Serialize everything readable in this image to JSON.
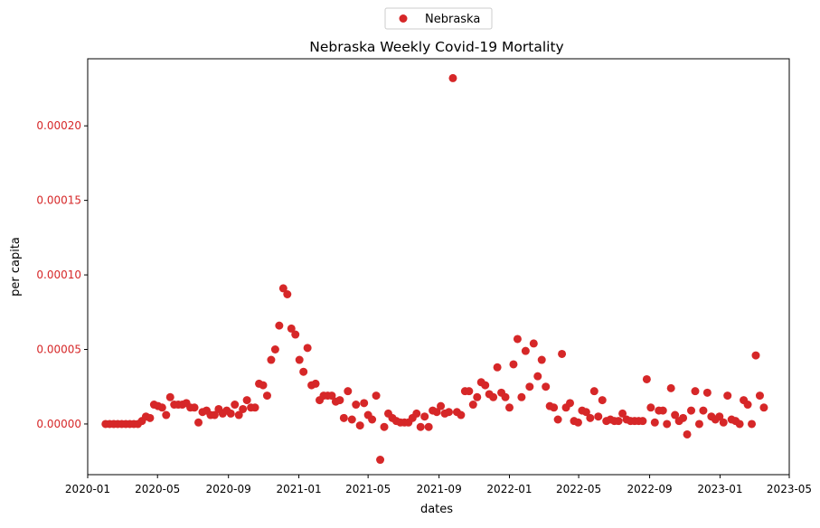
{
  "chart_data": {
    "type": "scatter",
    "title": "Nebraska Weekly Covid-19 Mortality",
    "xlabel": "dates",
    "ylabel": "per capita",
    "legend": {
      "position": "top-center",
      "entries": [
        "Nebraska"
      ]
    },
    "grid": false,
    "marker_color": "#d62728",
    "ytick_color": "#d62728",
    "xlim": [
      "2020-01-01",
      "2023-05-01"
    ],
    "ylim": [
      -3.4e-05,
      0.000245
    ],
    "xticks": [
      "2020-01",
      "2020-05",
      "2020-09",
      "2021-01",
      "2021-05",
      "2021-09",
      "2022-01",
      "2022-05",
      "2022-09",
      "2023-01",
      "2023-05"
    ],
    "xtick_dates": [
      "2020-01-01",
      "2020-05-01",
      "2020-09-01",
      "2021-01-01",
      "2021-05-01",
      "2021-09-01",
      "2022-01-01",
      "2022-05-01",
      "2022-09-01",
      "2023-01-01",
      "2023-05-01"
    ],
    "yticks": [
      "0.00000",
      "0.00005",
      "0.00010",
      "0.00015",
      "0.00020"
    ],
    "ytick_values": [
      0,
      5e-05,
      0.0001,
      0.00015,
      0.0002
    ],
    "series": [
      {
        "name": "Nebraska",
        "points": [
          [
            "2020-02-01",
            0.0
          ],
          [
            "2020-02-08",
            0.0
          ],
          [
            "2020-02-15",
            0.0
          ],
          [
            "2020-02-22",
            0.0
          ],
          [
            "2020-02-29",
            0.0
          ],
          [
            "2020-03-07",
            0.0
          ],
          [
            "2020-03-14",
            0.0
          ],
          [
            "2020-03-21",
            0.0
          ],
          [
            "2020-03-28",
            0.0
          ],
          [
            "2020-04-04",
            2e-06
          ],
          [
            "2020-04-11",
            5e-06
          ],
          [
            "2020-04-18",
            4e-06
          ],
          [
            "2020-04-25",
            1.3e-05
          ],
          [
            "2020-05-02",
            1.2e-05
          ],
          [
            "2020-05-09",
            1.1e-05
          ],
          [
            "2020-05-16",
            6e-06
          ],
          [
            "2020-05-23",
            1.8e-05
          ],
          [
            "2020-05-30",
            1.3e-05
          ],
          [
            "2020-06-06",
            1.3e-05
          ],
          [
            "2020-06-13",
            1.3e-05
          ],
          [
            "2020-06-20",
            1.4e-05
          ],
          [
            "2020-06-27",
            1.1e-05
          ],
          [
            "2020-07-04",
            1.1e-05
          ],
          [
            "2020-07-11",
            1e-06
          ],
          [
            "2020-07-18",
            8e-06
          ],
          [
            "2020-07-25",
            9e-06
          ],
          [
            "2020-08-01",
            6e-06
          ],
          [
            "2020-08-08",
            6e-06
          ],
          [
            "2020-08-15",
            1e-05
          ],
          [
            "2020-08-22",
            7e-06
          ],
          [
            "2020-08-29",
            9e-06
          ],
          [
            "2020-09-05",
            7e-06
          ],
          [
            "2020-09-12",
            1.3e-05
          ],
          [
            "2020-09-19",
            6e-06
          ],
          [
            "2020-09-26",
            1e-05
          ],
          [
            "2020-10-03",
            1.6e-05
          ],
          [
            "2020-10-10",
            1.1e-05
          ],
          [
            "2020-10-17",
            1.1e-05
          ],
          [
            "2020-10-24",
            2.7e-05
          ],
          [
            "2020-10-31",
            2.6e-05
          ],
          [
            "2020-11-07",
            1.9e-05
          ],
          [
            "2020-11-14",
            4.3e-05
          ],
          [
            "2020-11-21",
            5e-05
          ],
          [
            "2020-11-28",
            6.6e-05
          ],
          [
            "2020-12-05",
            9.1e-05
          ],
          [
            "2020-12-12",
            8.7e-05
          ],
          [
            "2020-12-19",
            6.4e-05
          ],
          [
            "2020-12-26",
            6e-05
          ],
          [
            "2021-01-02",
            4.3e-05
          ],
          [
            "2021-01-09",
            3.5e-05
          ],
          [
            "2021-01-16",
            5.1e-05
          ],
          [
            "2021-01-23",
            2.6e-05
          ],
          [
            "2021-01-30",
            2.7e-05
          ],
          [
            "2021-02-06",
            1.6e-05
          ],
          [
            "2021-02-13",
            1.9e-05
          ],
          [
            "2021-02-20",
            1.9e-05
          ],
          [
            "2021-02-27",
            1.9e-05
          ],
          [
            "2021-03-06",
            1.5e-05
          ],
          [
            "2021-03-13",
            1.6e-05
          ],
          [
            "2021-03-20",
            4e-06
          ],
          [
            "2021-03-27",
            2.2e-05
          ],
          [
            "2021-04-03",
            3e-06
          ],
          [
            "2021-04-10",
            1.3e-05
          ],
          [
            "2021-04-17",
            -1e-06
          ],
          [
            "2021-04-24",
            1.4e-05
          ],
          [
            "2021-05-01",
            6e-06
          ],
          [
            "2021-05-08",
            3e-06
          ],
          [
            "2021-05-15",
            1.9e-05
          ],
          [
            "2021-05-22",
            -2.4e-05
          ],
          [
            "2021-05-29",
            -2e-06
          ],
          [
            "2021-06-05",
            7e-06
          ],
          [
            "2021-06-12",
            4e-06
          ],
          [
            "2021-06-19",
            2e-06
          ],
          [
            "2021-06-26",
            1e-06
          ],
          [
            "2021-07-03",
            1e-06
          ],
          [
            "2021-07-10",
            1e-06
          ],
          [
            "2021-07-17",
            4e-06
          ],
          [
            "2021-07-24",
            7e-06
          ],
          [
            "2021-07-31",
            -2e-06
          ],
          [
            "2021-08-07",
            5e-06
          ],
          [
            "2021-08-14",
            -2e-06
          ],
          [
            "2021-08-21",
            9e-06
          ],
          [
            "2021-08-28",
            8e-06
          ],
          [
            "2021-09-04",
            1.2e-05
          ],
          [
            "2021-09-11",
            7e-06
          ],
          [
            "2021-09-18",
            8e-06
          ],
          [
            "2021-09-25",
            0.000232
          ],
          [
            "2021-10-02",
            8e-06
          ],
          [
            "2021-10-09",
            6e-06
          ],
          [
            "2021-10-16",
            2.2e-05
          ],
          [
            "2021-10-23",
            2.2e-05
          ],
          [
            "2021-10-30",
            1.3e-05
          ],
          [
            "2021-11-06",
            1.8e-05
          ],
          [
            "2021-11-13",
            2.8e-05
          ],
          [
            "2021-11-20",
            2.6e-05
          ],
          [
            "2021-11-27",
            2e-05
          ],
          [
            "2021-12-04",
            1.8e-05
          ],
          [
            "2021-12-11",
            3.8e-05
          ],
          [
            "2021-12-18",
            2.1e-05
          ],
          [
            "2021-12-25",
            1.8e-05
          ],
          [
            "2022-01-01",
            1.1e-05
          ],
          [
            "2022-01-08",
            4e-05
          ],
          [
            "2022-01-15",
            5.7e-05
          ],
          [
            "2022-01-22",
            1.8e-05
          ],
          [
            "2022-01-29",
            4.9e-05
          ],
          [
            "2022-02-05",
            2.5e-05
          ],
          [
            "2022-02-12",
            5.4e-05
          ],
          [
            "2022-02-19",
            3.2e-05
          ],
          [
            "2022-02-26",
            4.3e-05
          ],
          [
            "2022-03-05",
            2.5e-05
          ],
          [
            "2022-03-12",
            1.2e-05
          ],
          [
            "2022-03-19",
            1.1e-05
          ],
          [
            "2022-03-26",
            3e-06
          ],
          [
            "2022-04-02",
            4.7e-05
          ],
          [
            "2022-04-09",
            1.1e-05
          ],
          [
            "2022-04-16",
            1.4e-05
          ],
          [
            "2022-04-23",
            2e-06
          ],
          [
            "2022-04-30",
            1e-06
          ],
          [
            "2022-05-07",
            9e-06
          ],
          [
            "2022-05-14",
            8e-06
          ],
          [
            "2022-05-21",
            4e-06
          ],
          [
            "2022-05-28",
            2.2e-05
          ],
          [
            "2022-06-04",
            5e-06
          ],
          [
            "2022-06-11",
            1.6e-05
          ],
          [
            "2022-06-18",
            2e-06
          ],
          [
            "2022-06-25",
            3e-06
          ],
          [
            "2022-07-02",
            2e-06
          ],
          [
            "2022-07-09",
            2e-06
          ],
          [
            "2022-07-16",
            7e-06
          ],
          [
            "2022-07-23",
            3e-06
          ],
          [
            "2022-07-30",
            2e-06
          ],
          [
            "2022-08-06",
            2e-06
          ],
          [
            "2022-08-13",
            2e-06
          ],
          [
            "2022-08-20",
            2e-06
          ],
          [
            "2022-08-27",
            3e-05
          ],
          [
            "2022-09-03",
            1.1e-05
          ],
          [
            "2022-09-10",
            1e-06
          ],
          [
            "2022-09-17",
            9e-06
          ],
          [
            "2022-09-24",
            9e-06
          ],
          [
            "2022-10-01",
            0.0
          ],
          [
            "2022-10-08",
            2.4e-05
          ],
          [
            "2022-10-15",
            6e-06
          ],
          [
            "2022-10-22",
            2e-06
          ],
          [
            "2022-10-29",
            4e-06
          ],
          [
            "2022-11-05",
            -7e-06
          ],
          [
            "2022-11-12",
            9e-06
          ],
          [
            "2022-11-19",
            2.2e-05
          ],
          [
            "2022-11-26",
            0.0
          ],
          [
            "2022-12-03",
            9e-06
          ],
          [
            "2022-12-10",
            2.1e-05
          ],
          [
            "2022-12-17",
            5e-06
          ],
          [
            "2022-12-24",
            3e-06
          ],
          [
            "2022-12-31",
            5e-06
          ],
          [
            "2023-01-07",
            1e-06
          ],
          [
            "2023-01-14",
            1.9e-05
          ],
          [
            "2023-01-21",
            3e-06
          ],
          [
            "2023-01-28",
            2e-06
          ],
          [
            "2023-02-04",
            0.0
          ],
          [
            "2023-02-11",
            1.6e-05
          ],
          [
            "2023-02-18",
            1.3e-05
          ],
          [
            "2023-02-25",
            0.0
          ],
          [
            "2023-03-04",
            4.6e-05
          ],
          [
            "2023-03-11",
            1.9e-05
          ],
          [
            "2023-03-18",
            1.1e-05
          ]
        ]
      }
    ]
  }
}
